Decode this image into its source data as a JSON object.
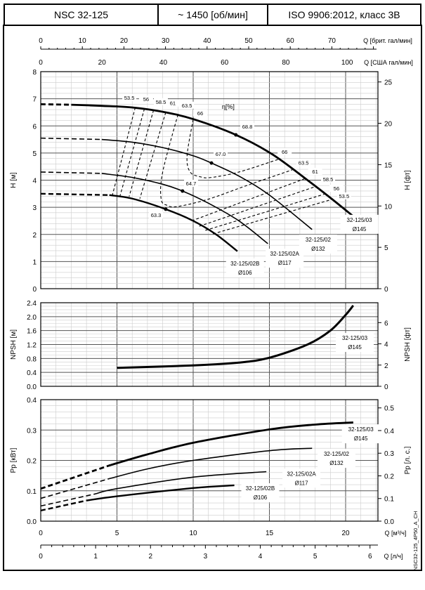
{
  "header": {
    "model": "NSC 32-125",
    "speed": "~ 1450 [об/мин]",
    "standard": "ISO 9906:2012, класс 3B"
  },
  "watermark": "NSC32-125_4P50_A_CH",
  "chart_data": [
    {
      "type": "line",
      "panel": "head",
      "ylabel": "H [м]",
      "ylabel_right": "H [фт]",
      "ylim": [
        0,
        8
      ],
      "yticks": [
        0,
        1,
        2,
        3,
        4,
        5,
        6,
        7,
        8
      ],
      "yticks_right": [
        0,
        5,
        10,
        15,
        20,
        25
      ],
      "xlim": [
        0,
        22.1
      ],
      "grid": true,
      "efficiency_label": "η[%]",
      "series": [
        {
          "name": "32-125/03",
          "diameter": "Ø145",
          "dashed": [
            [
              0,
              6.8
            ],
            [
              2,
              6.78
            ]
          ],
          "solid": [
            [
              2,
              6.78
            ],
            [
              4,
              6.74
            ],
            [
              6,
              6.68
            ],
            [
              8,
              6.52
            ],
            [
              10,
              6.25
            ],
            [
              12.8,
              5.67
            ],
            [
              15.2,
              4.95
            ],
            [
              17.5,
              4.0
            ],
            [
              19,
              3.35
            ],
            [
              20.5,
              2.67
            ]
          ],
          "bep": [
            12.8,
            5.67
          ],
          "bep_eff": "68.8"
        },
        {
          "name": "32-125/02",
          "diameter": "Ø132",
          "dashed": [
            [
              0,
              5.55
            ],
            [
              4,
              5.5
            ]
          ],
          "solid": [
            [
              4,
              5.5
            ],
            [
              6,
              5.4
            ],
            [
              8,
              5.2
            ],
            [
              10,
              4.9
            ],
            [
              11.2,
              4.63
            ],
            [
              13,
              4.15
            ],
            [
              15,
              3.45
            ],
            [
              17.8,
              2.18
            ]
          ],
          "bep": [
            11.2,
            4.63
          ],
          "bep_eff": "67.0"
        },
        {
          "name": "32-125/02A",
          "diameter": "Ø117",
          "dashed": [
            [
              0,
              4.3
            ],
            [
              4,
              4.25
            ]
          ],
          "solid": [
            [
              4,
              4.25
            ],
            [
              6,
              4.1
            ],
            [
              8,
              3.85
            ],
            [
              9.3,
              3.6
            ],
            [
              11,
              3.15
            ],
            [
              13,
              2.5
            ],
            [
              14.9,
              1.66
            ]
          ],
          "bep": [
            9.3,
            3.6
          ],
          "bep_eff": "64.7"
        },
        {
          "name": "32-125/02B",
          "diameter": "Ø106",
          "dashed": [
            [
              0,
              3.5
            ],
            [
              4.5,
              3.45
            ]
          ],
          "solid": [
            [
              4.5,
              3.45
            ],
            [
              6,
              3.32
            ],
            [
              8.2,
              2.93
            ],
            [
              10,
              2.5
            ],
            [
              11.5,
              2.0
            ],
            [
              12.9,
              1.38
            ]
          ],
          "bep": [
            8.2,
            2.93
          ],
          "bep_eff": "63.3"
        }
      ],
      "iso_efficiency": [
        {
          "value": "53.5",
          "points": [
            [
              6.2,
              6.68
            ],
            [
              4.7,
              3.45
            ]
          ]
        },
        {
          "value": "56",
          "points": [
            [
              6.8,
              6.63
            ],
            [
              5.2,
              3.42
            ]
          ]
        },
        {
          "value": "58.5",
          "points": [
            [
              7.4,
              6.58
            ],
            [
              5.8,
              3.4
            ]
          ]
        },
        {
          "value": "61",
          "points": [
            [
              8.2,
              6.5
            ],
            [
              6.5,
              3.32
            ]
          ]
        },
        {
          "value": "63.5",
          "points": [
            [
              9.0,
              6.42
            ],
            [
              8.0,
              4.3
            ],
            [
              7.9,
              3.3
            ],
            [
              8.3,
              3.07
            ],
            [
              9.0,
              3.03
            ],
            [
              11,
              3.3
            ],
            [
              13.5,
              3.8
            ],
            [
              16.5,
              4.38
            ]
          ]
        },
        {
          "value": "66",
          "points": [
            [
              10.0,
              6.24
            ],
            [
              9.6,
              4.9
            ],
            [
              9.8,
              4.3
            ],
            [
              10.5,
              4.12
            ],
            [
              11.2,
              4.1
            ],
            [
              13,
              4.3
            ],
            [
              15.6,
              4.77
            ]
          ]
        },
        {
          "value": "61",
          "points": [
            [
              9.9,
              2.5
            ],
            [
              17.3,
              4.05
            ]
          ]
        },
        {
          "value": "58.5",
          "points": [
            [
              10.4,
              2.3
            ],
            [
              18.0,
              3.76
            ]
          ]
        },
        {
          "value": "56",
          "points": [
            [
              10.8,
              2.15
            ],
            [
              18.7,
              3.5
            ]
          ]
        },
        {
          "value": "53.5",
          "points": [
            [
              11.3,
              2.02
            ],
            [
              19.1,
              3.29
            ]
          ]
        }
      ],
      "annotations": [
        {
          "text": "53.5",
          "at": [
            5.81,
            6.99
          ]
        },
        {
          "text": "56",
          "at": [
            6.91,
            6.94
          ]
        },
        {
          "text": "58.5",
          "at": [
            7.88,
            6.84
          ]
        },
        {
          "text": "61",
          "at": [
            8.66,
            6.79
          ]
        },
        {
          "text": "63.5",
          "at": [
            9.59,
            6.71
          ]
        },
        {
          "text": "66",
          "at": [
            10.46,
            6.42
          ]
        },
        {
          "text": "68.8",
          "at": [
            13.55,
            5.93
          ]
        },
        {
          "text": "67.0",
          "at": [
            11.8,
            4.92
          ]
        },
        {
          "text": "64.7",
          "at": [
            9.86,
            3.83
          ]
        },
        {
          "text": "63.3",
          "at": [
            7.56,
            2.67
          ]
        },
        {
          "text": "66",
          "at": [
            16.0,
            5.0
          ]
        },
        {
          "text": "63.5",
          "at": [
            17.24,
            4.59
          ]
        },
        {
          "text": "61",
          "at": [
            18.0,
            4.27
          ]
        },
        {
          "text": "58.5",
          "at": [
            18.85,
            3.99
          ]
        },
        {
          "text": "56",
          "at": [
            19.4,
            3.65
          ]
        },
        {
          "text": "53.5",
          "at": [
            19.9,
            3.37
          ]
        }
      ],
      "curve_labels": [
        {
          "name": "32-125/03",
          "diameter": "Ø145",
          "at": [
            20.9,
            2.49
          ]
        },
        {
          "name": "32-125/02",
          "diameter": "Ø132",
          "at": [
            18.2,
            1.76
          ]
        },
        {
          "name": "32-125/02A",
          "diameter": "Ø117",
          "at": [
            16.0,
            1.24
          ]
        },
        {
          "name": "32-125/02B",
          "diameter": "Ø106",
          "at": [
            13.4,
            0.88
          ]
        }
      ]
    },
    {
      "type": "line",
      "panel": "npsh",
      "ylabel": "NPSH [м]",
      "ylabel_right": "NPSH [фт]",
      "ylim": [
        0,
        2.4
      ],
      "yticks": [
        "0.0",
        "0.4",
        "0.8",
        "1.2",
        "1.6",
        "2.0",
        "2.4"
      ],
      "yticks_right": [
        0,
        2,
        4,
        6
      ],
      "grid": true,
      "series": [
        {
          "name": "32-125/03",
          "diameter": "Ø145",
          "solid": [
            [
              5,
              0.53
            ],
            [
              10,
              0.6
            ],
            [
              13,
              0.68
            ],
            [
              15,
              0.82
            ],
            [
              17.5,
              1.2
            ],
            [
              19,
              1.6
            ],
            [
              20,
              2.05
            ],
            [
              20.5,
              2.32
            ]
          ]
        }
      ],
      "curve_labels": [
        {
          "name": "32-125/03",
          "diameter": "Ø145",
          "at": [
            20.6,
            1.35
          ]
        }
      ]
    },
    {
      "type": "line",
      "panel": "power",
      "ylabel": "Pp [кВт]",
      "ylabel_right": "Pp [л. с.]",
      "ylim": [
        0,
        0.4
      ],
      "yticks": [
        "0.0",
        "0.1",
        "0.2",
        "0.3",
        "0.4"
      ],
      "yticks_right": [
        "0.0",
        "0.1",
        "0.2",
        "0.3",
        "0.4",
        "0.5"
      ],
      "grid": true,
      "series": [
        {
          "name": "32-125/03",
          "diameter": "Ø145",
          "dashed": [
            [
              0,
              0.107
            ],
            [
              4.6,
              0.185
            ]
          ],
          "solid": [
            [
              4.6,
              0.185
            ],
            [
              7,
              0.22
            ],
            [
              10,
              0.258
            ],
            [
              15,
              0.302
            ],
            [
              18,
              0.318
            ],
            [
              20.5,
              0.325
            ]
          ]
        },
        {
          "name": "32-125/02",
          "diameter": "Ø132",
          "dashed": [
            [
              0,
              0.075
            ],
            [
              4.5,
              0.14
            ]
          ],
          "solid": [
            [
              4.5,
              0.14
            ],
            [
              7,
              0.172
            ],
            [
              10,
              0.2
            ],
            [
              15,
              0.232
            ],
            [
              17.8,
              0.24
            ]
          ]
        },
        {
          "name": "32-125/02A",
          "diameter": "Ø117",
          "dashed": [
            [
              0,
              0.05
            ],
            [
              3.6,
              0.09
            ]
          ],
          "solid": [
            [
              3.6,
              0.09
            ],
            [
              5,
              0.107
            ],
            [
              10,
              0.145
            ],
            [
              14.8,
              0.163
            ]
          ]
        },
        {
          "name": "32-125/02B",
          "diameter": "Ø106",
          "dashed": [
            [
              0,
              0.035
            ],
            [
              3,
              0.068
            ]
          ],
          "solid": [
            [
              3,
              0.068
            ],
            [
              5,
              0.082
            ],
            [
              10,
              0.109
            ],
            [
              12.7,
              0.118
            ]
          ]
        }
      ],
      "curve_labels": [
        {
          "name": "32-125/03",
          "diameter": "Ø145",
          "at": [
            21,
            0.298
          ]
        },
        {
          "name": "32-125/02",
          "diameter": "Ø132",
          "at": [
            19.4,
            0.217
          ]
        },
        {
          "name": "32-125/02A",
          "diameter": "Ø117",
          "at": [
            17.1,
            0.152
          ]
        },
        {
          "name": "32-125/02B",
          "diameter": "Ø106",
          "at": [
            14.4,
            0.104
          ]
        }
      ]
    }
  ],
  "x_axes": {
    "m3h": {
      "label": "Q [м³/ч]",
      "ticks": [
        0,
        5,
        10,
        15,
        20
      ]
    },
    "lps": {
      "label": "Q [л/ч]",
      "ticks": [
        0,
        1,
        2,
        3,
        4,
        5,
        6
      ]
    },
    "brit": {
      "label": "Q [брит. гал/мин]",
      "ticks": [
        0,
        10,
        20,
        30,
        40,
        50,
        60,
        70
      ]
    },
    "us": {
      "label": "Q [США гал/мин]",
      "ticks": [
        0,
        20,
        40,
        60,
        80,
        100
      ]
    }
  }
}
